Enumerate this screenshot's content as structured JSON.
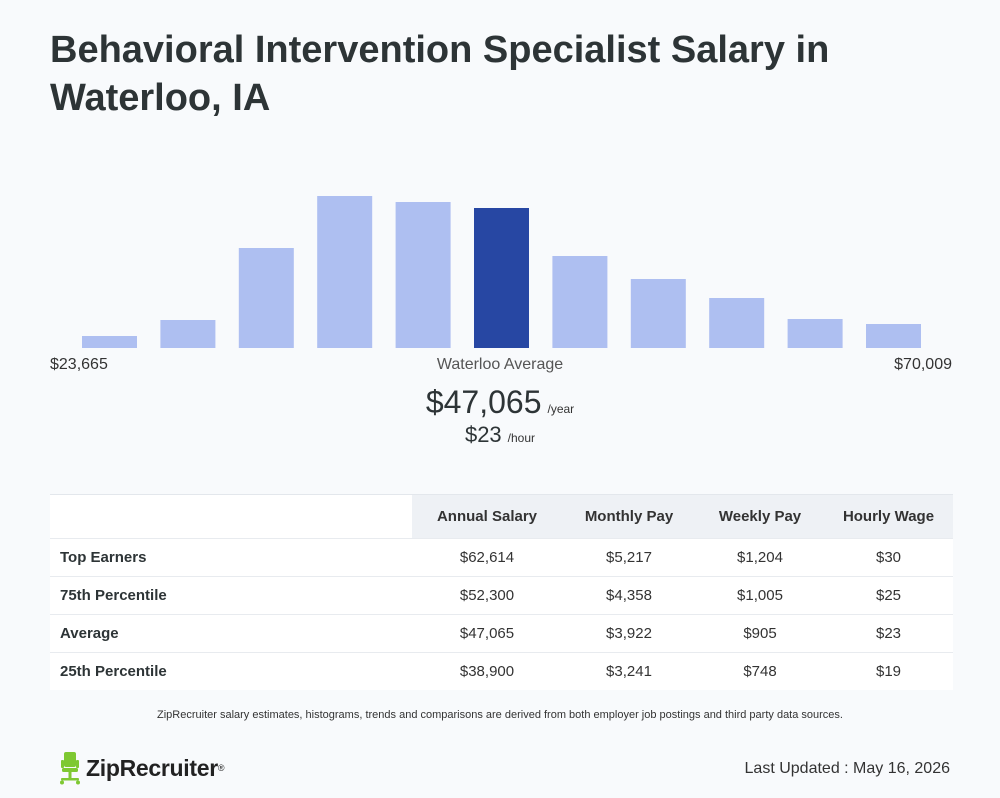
{
  "page": {
    "title": "Behavioral Intervention Specialist Salary in Waterloo, IA"
  },
  "chart_data": {
    "type": "bar",
    "title": "",
    "range_min_label": "$23,665",
    "range_max_label": "$70,009",
    "avg_label": "Waterloo Average",
    "values": [
      12,
      28,
      100,
      152,
      146,
      140,
      92,
      69,
      50,
      29,
      24
    ],
    "highlight_index": 5,
    "colors": {
      "bar": "#aebff1",
      "highlight": "#2747a3"
    }
  },
  "average": {
    "annual": "$47,065",
    "annual_unit": "/year",
    "hourly": "$23",
    "hourly_unit": "/hour"
  },
  "table": {
    "headers": [
      "",
      "Annual Salary",
      "Monthly Pay",
      "Weekly Pay",
      "Hourly Wage"
    ],
    "rows": [
      [
        "Top Earners",
        "$62,614",
        "$5,217",
        "$1,204",
        "$30"
      ],
      [
        "75th Percentile",
        "$52,300",
        "$4,358",
        "$1,005",
        "$25"
      ],
      [
        "Average",
        "$47,065",
        "$3,922",
        "$905",
        "$23"
      ],
      [
        "25th Percentile",
        "$38,900",
        "$3,241",
        "$748",
        "$19"
      ]
    ]
  },
  "footer": {
    "disclaimer": "ZipRecruiter salary estimates, histograms, trends and comparisons are derived from both employer job postings and third party data sources.",
    "logo_text": "ZipRecruiter",
    "logo_reg": "®",
    "logo_icon": "chair-icon",
    "last_updated": "Last Updated : May 16, 2026"
  }
}
